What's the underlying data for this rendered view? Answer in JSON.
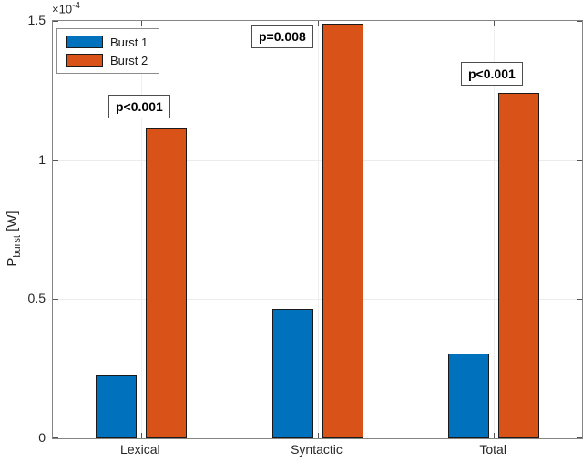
{
  "axis": {
    "offset_label": "×10",
    "offset_exponent": "-4",
    "ylabel_main": "P",
    "ylabel_sub": "burst",
    "ylabel_unit": " [W]"
  },
  "colors": {
    "background": "#ffffff",
    "axis_border": "#848484",
    "grid": "#ececec",
    "tick": "#545454",
    "text": "#262626",
    "bar_edge": "#1a1a1a",
    "annotation_border": "#4d4d4d",
    "legend_border": "#8c8c8c"
  },
  "chart_data": {
    "type": "bar",
    "title": "",
    "categories": [
      "Lexical",
      "Syntactic",
      "Total"
    ],
    "series": [
      {
        "name": "Burst 1",
        "color": "#0072BD",
        "values": [
          0.225,
          0.465,
          0.305
        ]
      },
      {
        "name": "Burst 2",
        "color": "#D95319",
        "values": [
          1.115,
          1.49,
          1.24
        ]
      }
    ],
    "value_scale": "1e-4",
    "unit": "W",
    "ylabel": "P_burst [W]",
    "xlabel": "",
    "ylim": [
      0,
      1.5
    ],
    "ytick_values": [
      0,
      0.5,
      1,
      1.5
    ],
    "ytick_labels": [
      "0",
      "0.5",
      "1",
      "1.5"
    ],
    "grid": true,
    "legend_position": "top-left",
    "annotations": [
      {
        "text": "p<0.001",
        "category": "Lexical"
      },
      {
        "text": "p=0.008",
        "category": "Syntactic"
      },
      {
        "text": "p<0.001",
        "category": "Total"
      }
    ]
  }
}
